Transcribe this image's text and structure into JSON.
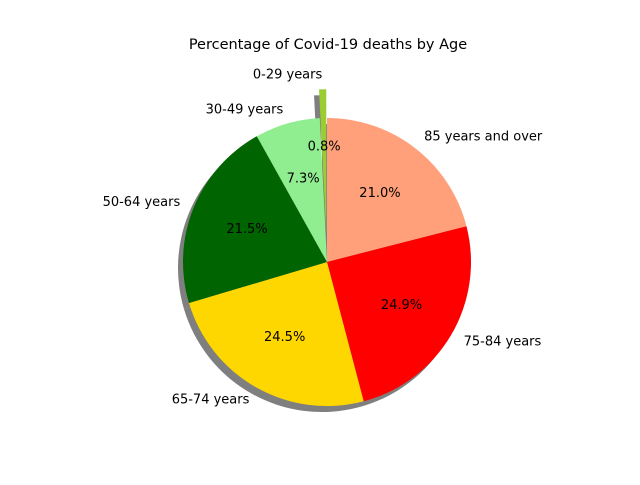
{
  "chart_data": {
    "type": "pie",
    "title": "Percentage of Covid-19 deaths by Age",
    "shadow": true,
    "explode": {
      "category": "0-29 years",
      "amount": 0.2
    },
    "categories": [
      "85 years and over",
      "75-84 years",
      "65-74 years",
      "50-64 years",
      "30-49 years",
      "0-29 years"
    ],
    "values": [
      21.0,
      24.9,
      24.5,
      21.5,
      7.3,
      0.8
    ],
    "value_labels": [
      "21.0%",
      "24.9%",
      "24.5%",
      "21.5%",
      "7.3%",
      "0.8%"
    ],
    "colors": [
      "#FFA07A",
      "#FF0000",
      "#FFD700",
      "#006400",
      "#90EE90",
      "#9ACD32"
    ],
    "start_angle_deg": 90,
    "direction": "clockwise"
  }
}
